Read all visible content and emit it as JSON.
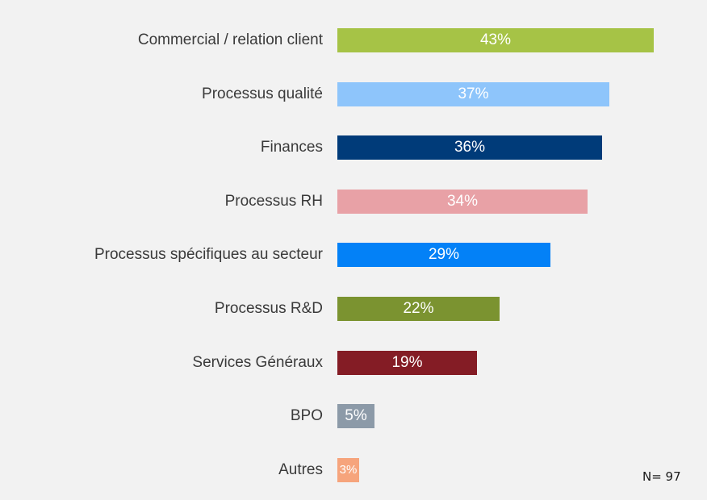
{
  "chart_data": {
    "type": "bar",
    "orientation": "horizontal",
    "categories": [
      "Commercial / relation client",
      "Processus qualité",
      "Finances",
      "Processus RH",
      "Processus spécifiques au secteur",
      "Processus R&D",
      "Services Généraux",
      "BPO",
      "Autres"
    ],
    "values": [
      43,
      37,
      36,
      34,
      29,
      22,
      19,
      5,
      3
    ],
    "value_labels": [
      "43%",
      "37%",
      "36%",
      "34%",
      "29%",
      "22%",
      "19%",
      "5%",
      "3%"
    ],
    "colors": [
      "#a6c346",
      "#8ec5fb",
      "#003b79",
      "#e8a1a6",
      "#0381f7",
      "#7b9330",
      "#841c25",
      "#8c9aa8",
      "#f6a47c"
    ],
    "unit": "%",
    "grid": false,
    "legend": "none",
    "title": "",
    "xlabel": "",
    "ylabel": ""
  },
  "footnote": "N= 97"
}
